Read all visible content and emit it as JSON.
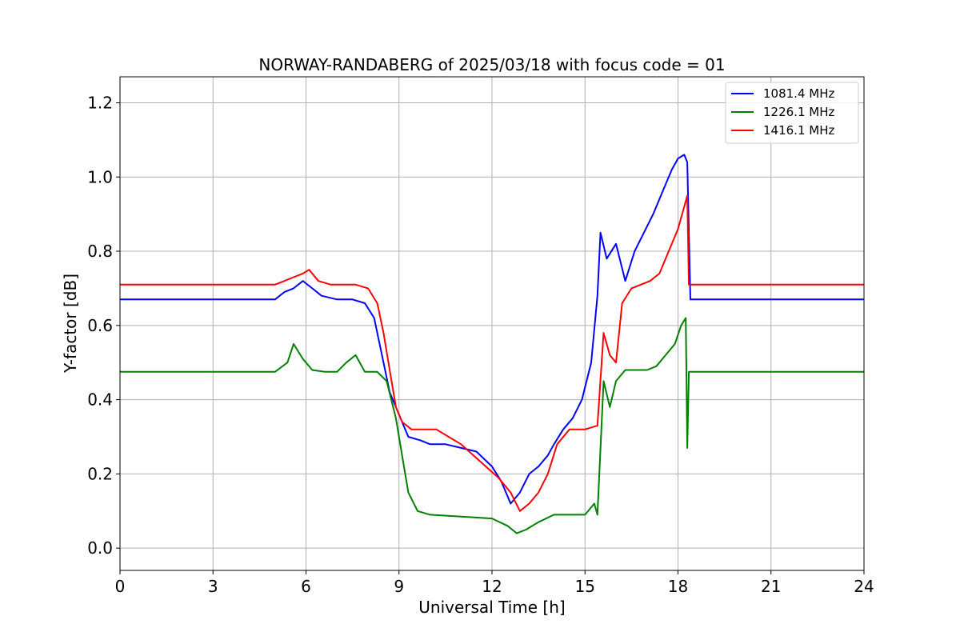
{
  "chart_data": {
    "type": "line",
    "title": "NORWAY-RANDABERG of 2025/03/18 with focus code = 01",
    "xlabel": "Universal Time [h]",
    "ylabel": "Y-factor [dB]",
    "xlim": [
      0,
      24
    ],
    "ylim": [
      -0.06,
      1.27
    ],
    "xticks": [
      0,
      3,
      6,
      9,
      12,
      15,
      18,
      21,
      24
    ],
    "xtick_labels": [
      "0",
      "3",
      "6",
      "9",
      "12",
      "15",
      "18",
      "21",
      "24"
    ],
    "yticks": [
      0.0,
      0.2,
      0.4,
      0.6,
      0.8,
      1.0,
      1.2
    ],
    "ytick_labels": [
      "0.0",
      "0.2",
      "0.4",
      "0.6",
      "0.8",
      "1.0",
      "1.2"
    ],
    "grid": true,
    "legend": "top-right",
    "series": [
      {
        "name": "1081.4 MHz",
        "color": "#0000ff",
        "x": [
          0,
          1,
          2,
          3,
          4,
          5,
          5.3,
          5.6,
          5.9,
          6.2,
          6.5,
          7,
          7.5,
          7.9,
          8.2,
          8.5,
          8.7,
          9,
          9.3,
          9.7,
          10,
          10.5,
          11,
          11.5,
          12,
          12.3,
          12.6,
          12.9,
          13.2,
          13.5,
          13.8,
          14,
          14.3,
          14.6,
          14.9,
          15.2,
          15.4,
          15.5,
          15.7,
          16,
          16.3,
          16.6,
          16.9,
          17.2,
          17.5,
          17.8,
          18.0,
          18.2,
          18.3,
          18.4,
          18.6,
          19,
          20,
          21,
          22,
          23,
          24
        ],
        "y": [
          0.67,
          0.67,
          0.67,
          0.67,
          0.67,
          0.67,
          0.69,
          0.7,
          0.72,
          0.7,
          0.68,
          0.67,
          0.67,
          0.66,
          0.62,
          0.5,
          0.42,
          0.36,
          0.3,
          0.29,
          0.28,
          0.28,
          0.27,
          0.26,
          0.22,
          0.18,
          0.12,
          0.15,
          0.2,
          0.22,
          0.25,
          0.28,
          0.32,
          0.35,
          0.4,
          0.5,
          0.68,
          0.85,
          0.78,
          0.82,
          0.72,
          0.8,
          0.85,
          0.9,
          0.96,
          1.02,
          1.05,
          1.06,
          1.04,
          0.67,
          0.67,
          0.67,
          0.67,
          0.67,
          0.67,
          0.67,
          0.67
        ]
      },
      {
        "name": "1226.1 MHz",
        "color": "#008000",
        "x": [
          0,
          1,
          2,
          3,
          4,
          5,
          5.4,
          5.6,
          5.9,
          6.2,
          6.6,
          7,
          7.3,
          7.6,
          7.9,
          8.3,
          8.6,
          8.9,
          9.1,
          9.3,
          9.6,
          10,
          11,
          12,
          12.5,
          12.8,
          13.1,
          13.5,
          14,
          14.5,
          15,
          15.3,
          15.4,
          15.6,
          15.8,
          16,
          16.3,
          16.6,
          17,
          17.3,
          17.6,
          17.9,
          18.1,
          18.25,
          18.3,
          18.35,
          18.5,
          19,
          20,
          21,
          22,
          23,
          24
        ],
        "y": [
          0.475,
          0.475,
          0.475,
          0.475,
          0.475,
          0.475,
          0.5,
          0.55,
          0.51,
          0.48,
          0.475,
          0.475,
          0.5,
          0.52,
          0.475,
          0.475,
          0.45,
          0.35,
          0.25,
          0.15,
          0.1,
          0.09,
          0.085,
          0.08,
          0.06,
          0.04,
          0.05,
          0.07,
          0.09,
          0.09,
          0.09,
          0.12,
          0.09,
          0.45,
          0.38,
          0.45,
          0.48,
          0.48,
          0.48,
          0.49,
          0.52,
          0.55,
          0.6,
          0.62,
          0.27,
          0.475,
          0.475,
          0.475,
          0.475,
          0.475,
          0.475,
          0.475,
          0.475
        ]
      },
      {
        "name": "1416.1 MHz",
        "color": "#ff0000",
        "x": [
          0,
          1,
          2,
          3,
          4,
          5,
          5.3,
          5.6,
          5.9,
          6.1,
          6.4,
          6.8,
          7.2,
          7.6,
          8,
          8.3,
          8.5,
          8.7,
          8.9,
          9.1,
          9.4,
          9.8,
          10.2,
          10.6,
          11,
          11.4,
          11.8,
          12.2,
          12.6,
          12.9,
          13.2,
          13.5,
          13.8,
          14.1,
          14.5,
          15,
          15.4,
          15.6,
          15.8,
          16,
          16.2,
          16.5,
          16.8,
          17.1,
          17.4,
          17.7,
          18.0,
          18.2,
          18.3,
          18.35,
          18.5,
          19,
          20,
          21,
          22,
          23,
          24
        ],
        "y": [
          0.71,
          0.71,
          0.71,
          0.71,
          0.71,
          0.71,
          0.72,
          0.73,
          0.74,
          0.75,
          0.72,
          0.71,
          0.71,
          0.71,
          0.7,
          0.66,
          0.58,
          0.48,
          0.38,
          0.34,
          0.32,
          0.32,
          0.32,
          0.3,
          0.28,
          0.25,
          0.22,
          0.19,
          0.15,
          0.1,
          0.12,
          0.15,
          0.2,
          0.28,
          0.32,
          0.32,
          0.33,
          0.58,
          0.52,
          0.5,
          0.66,
          0.7,
          0.71,
          0.72,
          0.74,
          0.8,
          0.86,
          0.92,
          0.95,
          0.71,
          0.71,
          0.71,
          0.71,
          0.71,
          0.71,
          0.71,
          0.71
        ]
      }
    ]
  }
}
